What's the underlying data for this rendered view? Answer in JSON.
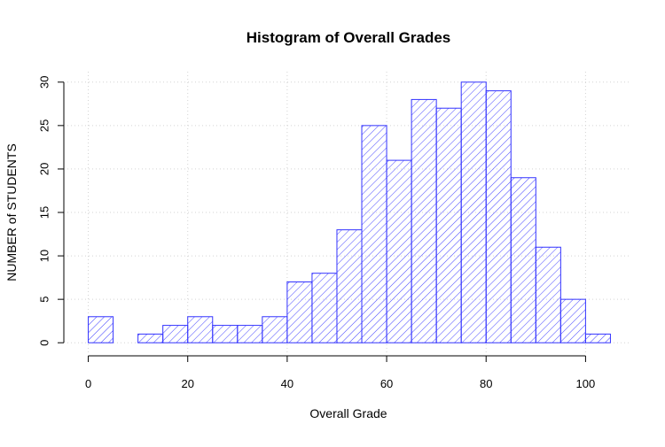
{
  "chart_data": {
    "type": "bar",
    "subtype": "histogram",
    "title": "Histogram of Overall Grades",
    "xlabel": "Overall Grade",
    "ylabel": "NUMBER of STUDENTS",
    "bin_width": 5,
    "bin_starts": [
      0,
      5,
      10,
      15,
      20,
      25,
      30,
      35,
      40,
      45,
      50,
      55,
      60,
      65,
      70,
      75,
      80,
      85,
      90,
      95,
      100
    ],
    "values": [
      3,
      0,
      1,
      2,
      3,
      2,
      2,
      3,
      7,
      8,
      13,
      25,
      21,
      28,
      27,
      30,
      29,
      19,
      11,
      5,
      1
    ],
    "xlim": [
      -4.2,
      109.2
    ],
    "ylim": [
      -1.2,
      31.2
    ],
    "x_ticks": [
      0,
      20,
      40,
      60,
      80,
      100
    ],
    "x_tick_labels": [
      "0",
      "20",
      "40",
      "60",
      "80",
      "100"
    ],
    "y_ticks": [
      0,
      5,
      10,
      15,
      20,
      25,
      30
    ],
    "y_tick_labels": [
      "0",
      "5",
      "10",
      "15",
      "20",
      "25",
      "30"
    ],
    "grid": true,
    "grid_style": "dotted light gray",
    "fill": "diagonal hatching",
    "colors": {
      "bar_stroke": "#3333ff",
      "hatch": "#4444ff",
      "grid": "#d3d3d3",
      "axis": "#000000"
    }
  }
}
